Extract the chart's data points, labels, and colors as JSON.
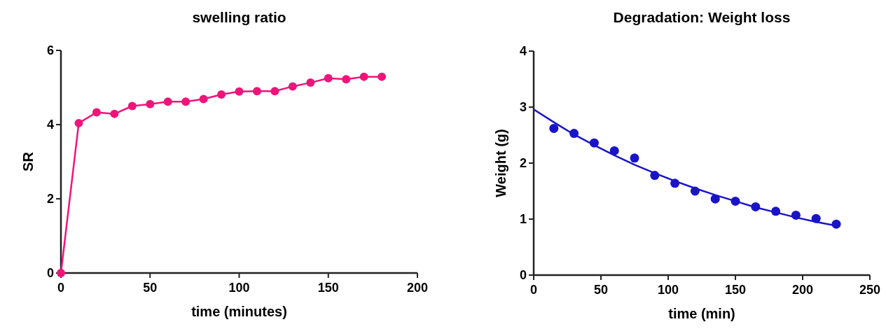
{
  "chart_data": [
    {
      "type": "line",
      "title": "swelling ratio",
      "xlabel": "time (minutes)",
      "ylabel": "SR",
      "marker": "circle",
      "line_style": "solid",
      "grid": false,
      "xlim": [
        0,
        200
      ],
      "xticks": [
        0,
        50,
        100,
        150,
        200
      ],
      "ylim": [
        0,
        6
      ],
      "yticks": [
        0,
        2,
        4,
        6
      ],
      "x": [
        0,
        10,
        20,
        30,
        40,
        50,
        60,
        70,
        80,
        90,
        100,
        110,
        120,
        130,
        140,
        150,
        160,
        170,
        180
      ],
      "series": [
        {
          "color": "#f0147a",
          "values": [
            0,
            4.04,
            4.33,
            4.29,
            4.5,
            4.55,
            4.62,
            4.62,
            4.69,
            4.81,
            4.89,
            4.9,
            4.9,
            5.03,
            5.13,
            5.25,
            5.22,
            5.29,
            5.29
          ]
        }
      ]
    },
    {
      "type": "scatter",
      "title": "Degradation: Weight loss",
      "xlabel": "time (min)",
      "ylabel": "Weight (g)",
      "marker": "circle",
      "grid": false,
      "xlim": [
        0,
        250
      ],
      "xticks": [
        0,
        50,
        100,
        150,
        200,
        {
          "value": 250,
          "label": "250"
        }
      ],
      "ylim": [
        0,
        4
      ],
      "yticks": [
        0,
        1,
        2,
        3,
        4
      ],
      "series": [
        {
          "color": "#1a14c8",
          "x": [
            15,
            30,
            45,
            60,
            75,
            90,
            105,
            120,
            135,
            150,
            165,
            180,
            195,
            210,
            225
          ],
          "values": [
            2.62,
            2.53,
            2.36,
            2.22,
            2.09,
            1.78,
            1.64,
            1.5,
            1.36,
            1.32,
            1.22,
            1.14,
            1.07,
            1.01,
            0.91
          ]
        },
        {
          "type": "line",
          "color": "#1a14c8",
          "marker": "none",
          "line_style": "solid",
          "x": [
            0,
            15,
            30,
            45,
            60,
            75,
            90,
            105,
            120,
            135,
            150,
            165,
            180,
            195,
            210,
            225
          ],
          "values": [
            2.96,
            2.73,
            2.51,
            2.32,
            2.14,
            1.97,
            1.82,
            1.68,
            1.55,
            1.43,
            1.32,
            1.21,
            1.12,
            1.03,
            0.95,
            0.88
          ]
        }
      ]
    }
  ]
}
